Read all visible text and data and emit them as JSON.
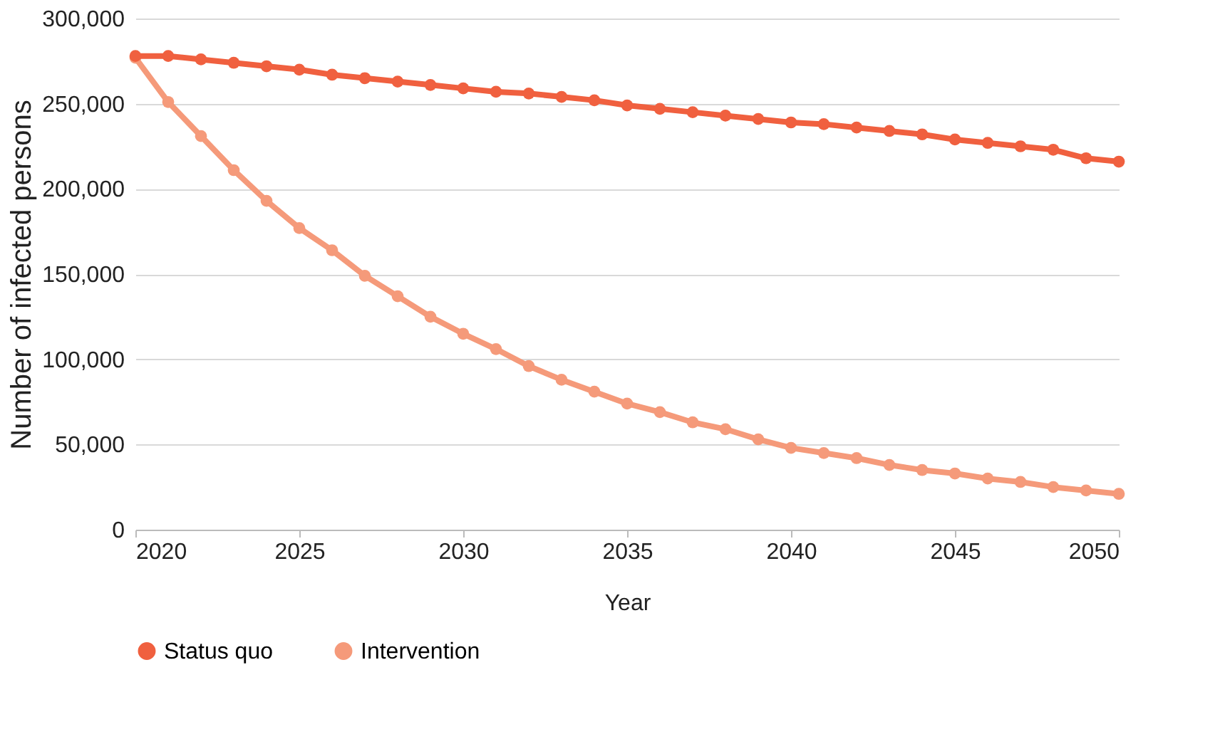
{
  "chart_data": {
    "type": "line",
    "xlabel": "Year",
    "ylabel": "Number of infected persons",
    "x": [
      2020,
      2021,
      2022,
      2023,
      2024,
      2025,
      2026,
      2027,
      2028,
      2029,
      2030,
      2031,
      2032,
      2033,
      2034,
      2035,
      2036,
      2037,
      2038,
      2039,
      2040,
      2041,
      2042,
      2043,
      2044,
      2045,
      2046,
      2047,
      2048,
      2049,
      2050
    ],
    "series": [
      {
        "name": "Status quo",
        "color": "#f0603f",
        "values": [
          278000,
          278000,
          276000,
          274000,
          272000,
          270000,
          267000,
          265000,
          263000,
          261000,
          259000,
          257000,
          256000,
          254000,
          252000,
          249000,
          247000,
          245000,
          243000,
          241000,
          239000,
          238000,
          236000,
          234000,
          232000,
          229000,
          227000,
          225000,
          223000,
          218000,
          216000
        ]
      },
      {
        "name": "Intervention",
        "color": "#f59a7a",
        "values": [
          277000,
          251000,
          231000,
          211000,
          193000,
          177000,
          164000,
          149000,
          137000,
          125000,
          115000,
          106000,
          96000,
          88000,
          81000,
          74000,
          69000,
          63000,
          59000,
          53000,
          48000,
          45000,
          42000,
          38000,
          35000,
          33000,
          30000,
          28000,
          25000,
          23000,
          21000
        ]
      }
    ],
    "xlim": [
      2020,
      2050
    ],
    "xticks": [
      2020,
      2025,
      2030,
      2035,
      2040,
      2045,
      2050
    ],
    "ylim": [
      0,
      300000
    ],
    "yticks": [
      {
        "value": 0,
        "label": "0"
      },
      {
        "value": 50000,
        "label": "50,000"
      },
      {
        "value": 100000,
        "label": "100,000"
      },
      {
        "value": 150000,
        "label": "150,000"
      },
      {
        "value": 200000,
        "label": "200,000"
      },
      {
        "value": 250000,
        "label": "250,000"
      },
      {
        "value": 300000,
        "label": "300,000"
      }
    ],
    "grid": "y",
    "legend": "bottom",
    "marker": "circle",
    "line_style": "solid"
  }
}
